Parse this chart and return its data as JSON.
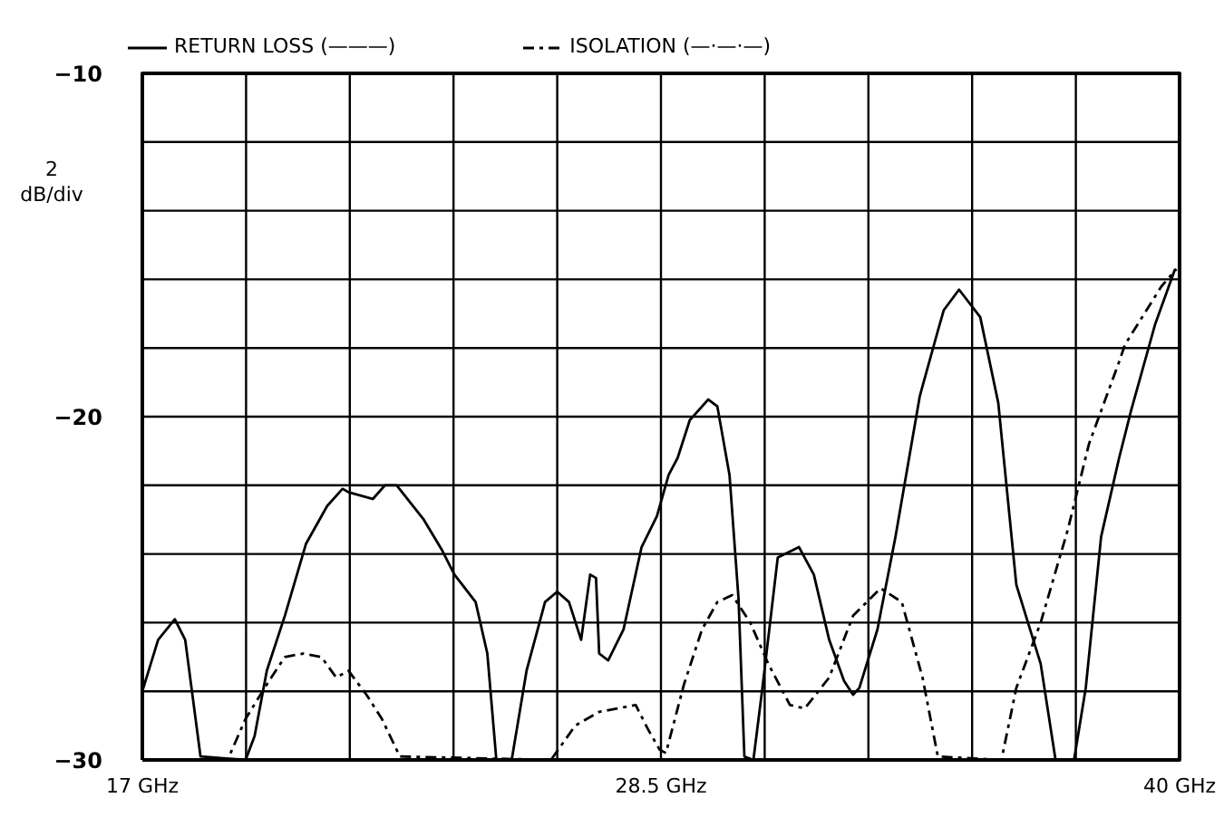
{
  "chart_data": {
    "type": "line",
    "ylabel": "2 dB/div",
    "legend": "top",
    "grid": true,
    "marker": "none",
    "xlim": [
      17,
      40
    ],
    "ylim": [
      -30,
      -10
    ],
    "xticks": [
      {
        "value": 17,
        "label": "17 GHz"
      },
      {
        "value": 19.3,
        "label": null
      },
      {
        "value": 21.6,
        "label": null
      },
      {
        "value": 23.9,
        "label": null
      },
      {
        "value": 26.2,
        "label": null
      },
      {
        "value": 28.5,
        "label": "28.5 GHz"
      },
      {
        "value": 30.8,
        "label": null
      },
      {
        "value": 33.1,
        "label": null
      },
      {
        "value": 35.4,
        "label": null
      },
      {
        "value": 37.7,
        "label": null
      },
      {
        "value": 40,
        "label": "40 GHz"
      }
    ],
    "yticks": [
      -30,
      {
        "value": -28,
        "label": null
      },
      {
        "value": -26,
        "label": null
      },
      {
        "value": -24,
        "label": null
      },
      {
        "value": -22,
        "label": null
      },
      -20,
      {
        "value": -18,
        "label": null
      },
      {
        "value": -16,
        "label": null
      },
      {
        "value": -14,
        "label": null
      },
      {
        "value": -12,
        "label": null
      },
      -10
    ],
    "series": [
      {
        "name": "RETURN LOSS (———)",
        "color": "#000000",
        "line_style": "solid",
        "x": [
          17.0,
          17.35,
          17.72,
          17.95,
          18.29,
          19.29,
          19.49,
          19.76,
          20.16,
          20.63,
          21.1,
          21.44,
          21.57,
          22.11,
          22.38,
          22.64,
          23.24,
          23.65,
          23.92,
          24.39,
          24.65,
          24.85,
          25.19,
          25.52,
          25.93,
          26.2,
          26.46,
          26.73,
          26.93,
          27.06,
          27.13,
          27.33,
          27.67,
          28.07,
          28.41,
          28.67,
          28.87,
          29.14,
          29.55,
          29.75,
          30.02,
          30.22,
          30.35,
          30.55,
          30.75,
          31.09,
          31.56,
          31.89,
          32.23,
          32.56,
          32.76,
          32.9,
          33.3,
          33.7,
          34.24,
          34.64,
          34.77,
          35.11,
          35.58,
          35.98,
          36.38,
          36.92,
          37.25,
          37.66,
          37.92,
          38.26,
          38.66,
          38.93,
          39.46,
          39.9
        ],
        "values": [
          -28.0,
          -26.5,
          -25.9,
          -26.5,
          -29.9,
          -30,
          -29.3,
          -27.4,
          -25.8,
          -23.7,
          -22.6,
          -22.1,
          -22.2,
          -22.4,
          -22.0,
          -22.0,
          -23.0,
          -23.9,
          -24.6,
          -25.4,
          -26.9,
          -30,
          -30,
          -27.4,
          -25.4,
          -25.1,
          -25.4,
          -26.5,
          -24.6,
          -24.7,
          -26.9,
          -27.1,
          -26.2,
          -23.8,
          -22.9,
          -21.7,
          -21.2,
          -20.1,
          -19.5,
          -19.7,
          -21.7,
          -25.3,
          -29.9,
          -30,
          -27.9,
          -24.1,
          -23.8,
          -24.6,
          -26.5,
          -27.7,
          -28.1,
          -27.9,
          -26.2,
          -23.5,
          -19.4,
          -17.5,
          -16.9,
          -16.3,
          -17.1,
          -19.6,
          -24.9,
          -27.2,
          -30,
          -30,
          -27.9,
          -23.5,
          -21.2,
          -19.8,
          -17.3,
          -15.7
        ]
      },
      {
        "name": "ISOLATION (—·—·—)",
        "color": "#000000",
        "line_style": "dashed",
        "x": [
          17.0,
          18.89,
          19.29,
          19.76,
          20.16,
          20.57,
          20.97,
          21.3,
          21.57,
          21.97,
          22.31,
          22.71,
          26.06,
          26.6,
          27.13,
          27.94,
          28.21,
          28.47,
          28.61,
          29.01,
          29.41,
          29.75,
          30.08,
          30.48,
          30.88,
          31.36,
          31.69,
          32.23,
          32.76,
          33.37,
          33.84,
          34.3,
          34.64,
          36.05,
          36.38,
          36.92,
          37.52,
          37.99,
          38.66,
          38.79,
          39.6,
          39.93
        ],
        "values": [
          -30,
          -30,
          -28.8,
          -27.8,
          -27.0,
          -26.9,
          -27.0,
          -27.6,
          -27.4,
          -28.1,
          -28.8,
          -29.9,
          -30,
          -29.0,
          -28.6,
          -28.4,
          -29.1,
          -29.7,
          -29.8,
          -27.8,
          -26.2,
          -25.4,
          -25.2,
          -26.0,
          -27.2,
          -28.4,
          -28.5,
          -27.6,
          -25.8,
          -25.0,
          -25.4,
          -27.6,
          -29.9,
          -30,
          -27.9,
          -26.0,
          -23.3,
          -20.8,
          -18.4,
          -17.9,
          -16.2,
          -15.7
        ]
      }
    ]
  }
}
